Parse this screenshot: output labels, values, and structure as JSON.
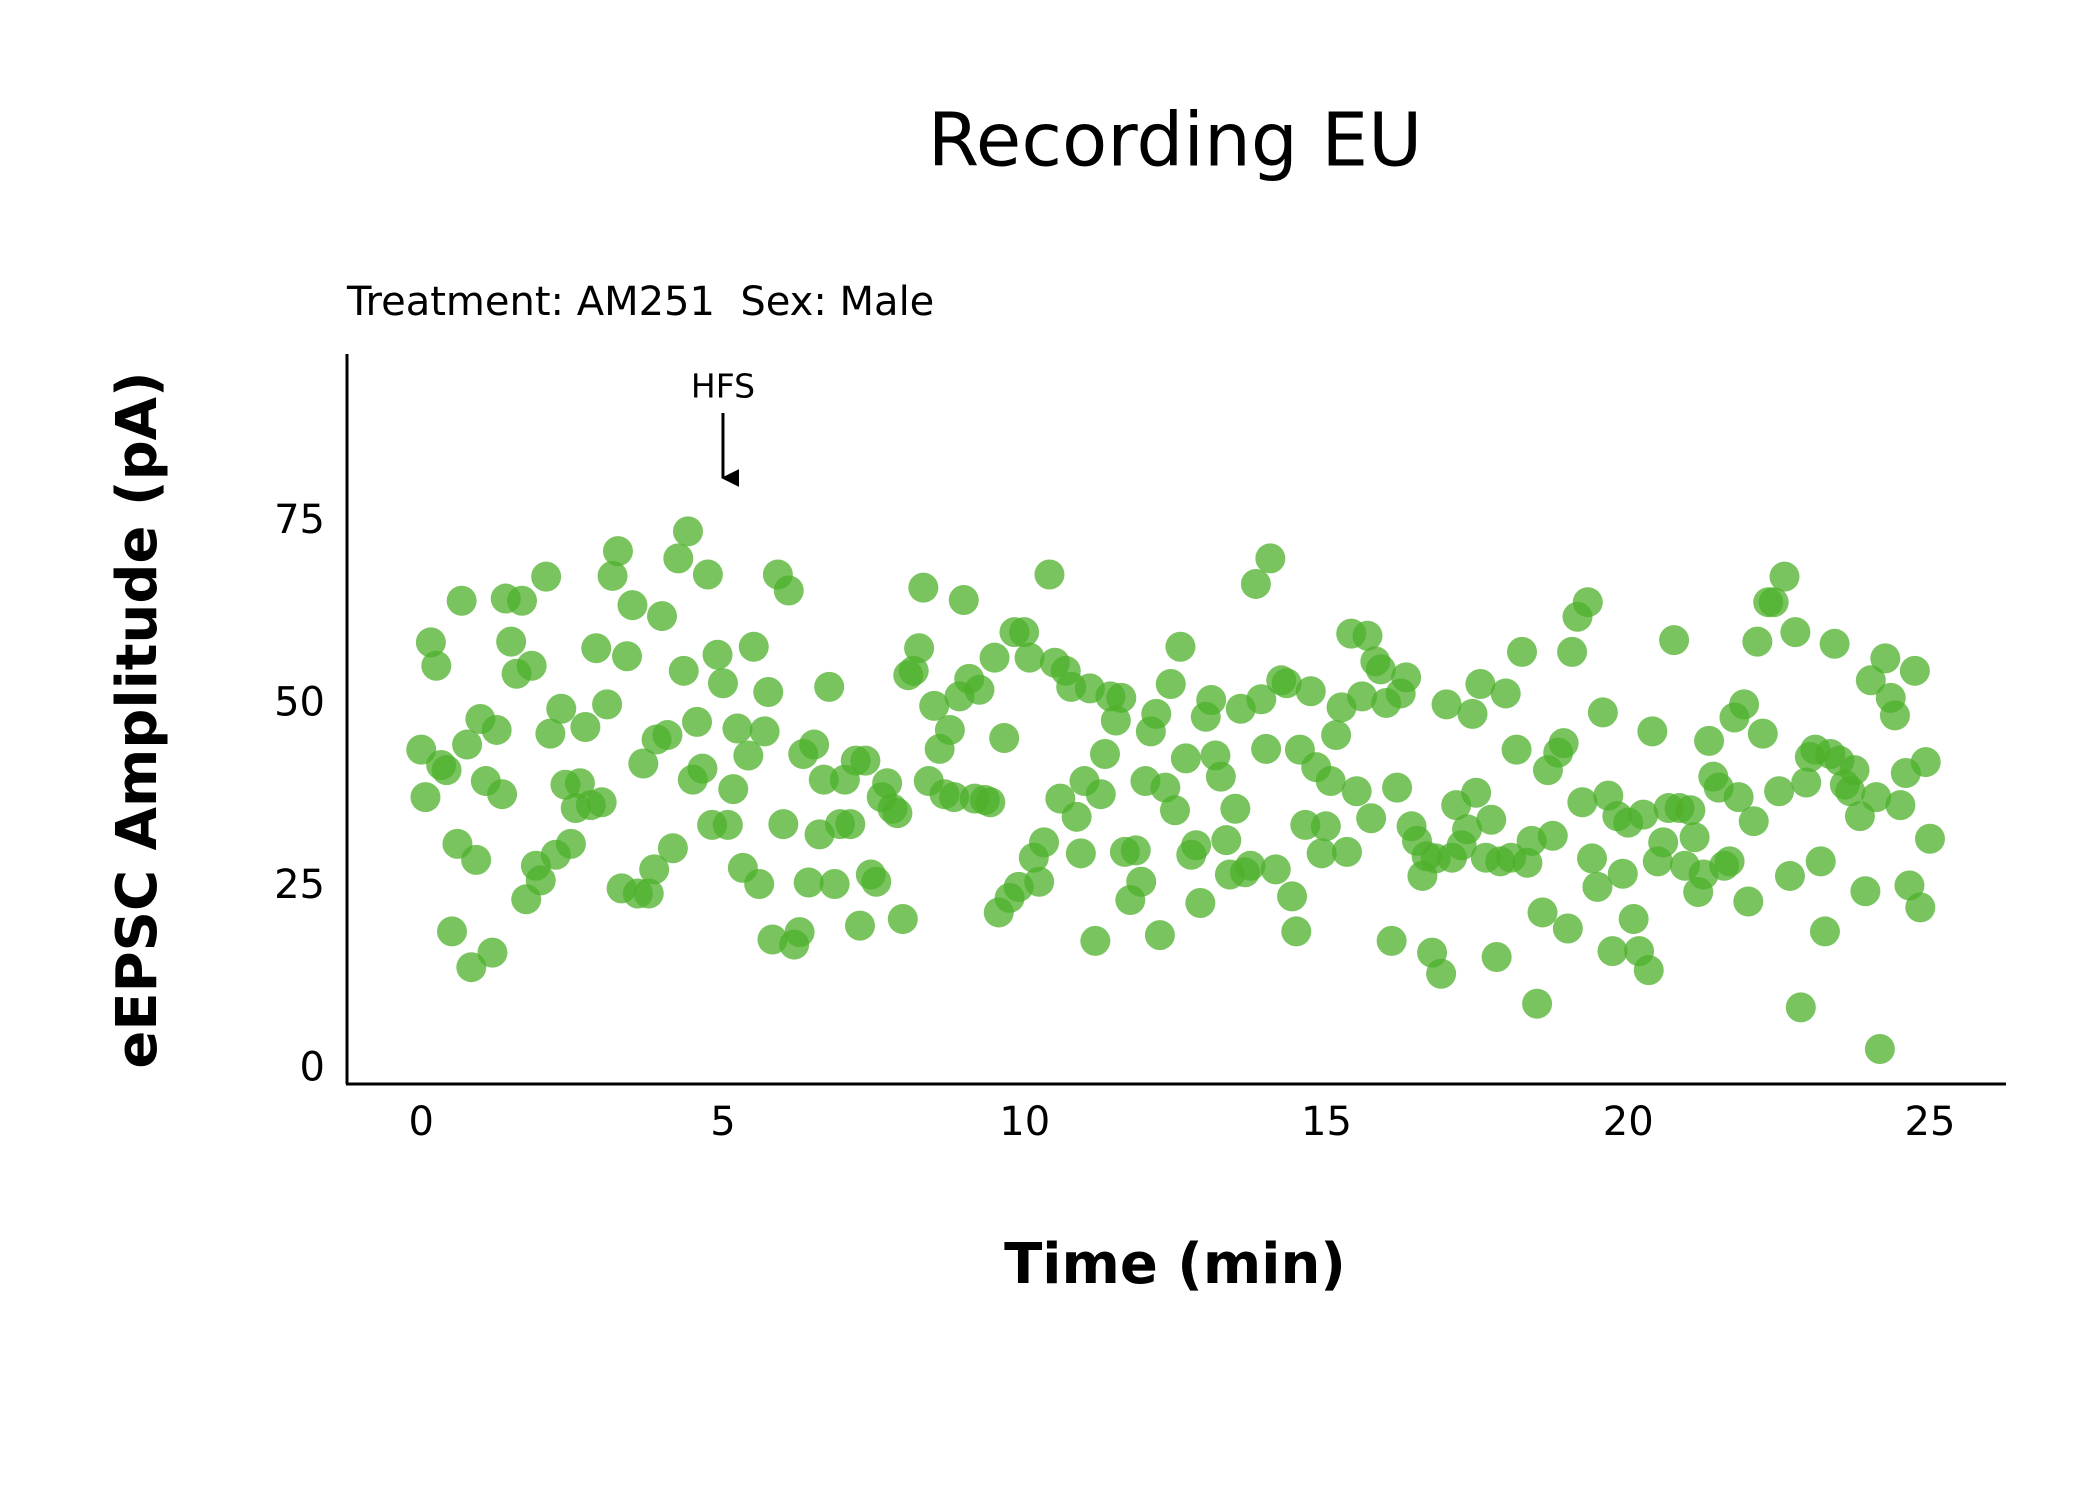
{
  "chart_data": {
    "type": "scatter",
    "title": "Recording EU",
    "subtitle": "Treatment: AM251  Sex: Male",
    "x_label": "Time (min)",
    "y_label": "eEPSC Amplitude (pA)",
    "color": "#4cb02a",
    "xlim": [
      -1.23,
      26.26
    ],
    "ylim": [
      -2,
      98
    ],
    "xticks": [
      0,
      5,
      10,
      15,
      20,
      25
    ],
    "yticks": [
      0,
      25,
      50,
      75
    ],
    "grid": false,
    "annotations": [
      {
        "text": "HFS",
        "x": 5
      }
    ],
    "x": [
      0.0,
      0.07,
      0.16,
      0.25,
      0.33,
      0.42,
      0.51,
      0.6,
      0.67,
      0.76,
      0.83,
      0.91,
      0.98,
      1.07,
      1.18,
      1.25,
      1.34,
      1.4,
      1.49,
      1.58,
      1.67,
      1.74,
      1.83,
      1.9,
      1.98,
      2.07,
      2.14,
      2.23,
      2.32,
      2.39,
      2.48,
      2.56,
      2.63,
      2.72,
      2.81,
      2.9,
      2.99,
      3.08,
      3.17,
      3.26,
      3.32,
      3.41,
      3.5,
      3.59,
      3.68,
      3.77,
      3.86,
      3.9,
      3.99,
      4.08,
      4.17,
      4.26,
      4.35,
      4.42,
      4.5,
      4.57,
      4.66,
      4.75,
      4.82,
      4.91,
      5.0,
      5.08,
      5.17,
      5.24,
      5.33,
      5.42,
      5.51,
      5.6,
      5.69,
      5.75,
      5.82,
      5.91,
      6.0,
      6.09,
      6.18,
      6.27,
      6.33,
      6.42,
      6.51,
      6.6,
      6.67,
      6.76,
      6.85,
      6.94,
      7.02,
      7.11,
      7.2,
      7.27,
      7.36,
      7.45,
      7.54,
      7.63,
      7.72,
      7.81,
      7.89,
      7.98,
      8.07,
      8.16,
      8.25,
      8.32,
      8.41,
      8.5,
      8.59,
      8.67,
      8.76,
      8.83,
      8.92,
      8.99,
      9.08,
      9.17,
      9.25,
      9.34,
      9.43,
      9.5,
      9.57,
      9.66,
      9.75,
      9.83,
      9.9,
      9.99,
      10.08,
      10.15,
      10.24,
      10.32,
      10.41,
      10.5,
      10.59,
      10.68,
      10.77,
      10.86,
      10.93,
      10.99,
      11.08,
      11.17,
      11.26,
      11.33,
      11.42,
      11.51,
      11.6,
      11.66,
      11.75,
      11.84,
      11.93,
      12.0,
      12.09,
      12.18,
      12.24,
      12.33,
      12.42,
      12.49,
      12.58,
      12.67,
      12.76,
      12.84,
      12.91,
      13.0,
      13.09,
      13.16,
      13.25,
      13.34,
      13.4,
      13.49,
      13.58,
      13.65,
      13.74,
      13.83,
      13.92,
      14.0,
      14.07,
      14.16,
      14.25,
      14.34,
      14.43,
      14.5,
      14.56,
      14.65,
      14.74,
      14.83,
      14.92,
      14.99,
      15.07,
      15.16,
      15.25,
      15.34,
      15.41,
      15.5,
      15.59,
      15.68,
      15.74,
      15.81,
      15.9,
      15.99,
      16.08,
      16.17,
      16.23,
      16.32,
      16.41,
      16.5,
      16.59,
      16.66,
      16.75,
      16.81,
      16.9,
      16.99,
      17.08,
      17.15,
      17.24,
      17.33,
      17.42,
      17.48,
      17.55,
      17.64,
      17.73,
      17.82,
      17.88,
      17.97,
      18.06,
      18.15,
      18.24,
      18.33,
      18.4,
      18.49,
      18.58,
      18.67,
      18.75,
      18.84,
      18.93,
      19.0,
      19.07,
      19.16,
      19.24,
      19.33,
      19.4,
      19.49,
      19.58,
      19.67,
      19.74,
      19.82,
      19.91,
      20.0,
      20.09,
      20.18,
      20.25,
      20.34,
      20.4,
      20.49,
      20.58,
      20.67,
      20.76,
      20.85,
      20.94,
      21.03,
      21.1,
      21.16,
      21.25,
      21.34,
      21.41,
      21.5,
      21.59,
      21.68,
      21.76,
      21.83,
      21.92,
      21.99,
      22.08,
      22.14,
      22.23,
      22.32,
      22.41,
      22.5,
      22.59,
      22.68,
      22.77,
      22.86,
      22.95,
      23.01,
      23.1,
      23.19,
      23.26,
      23.35,
      23.42,
      23.5,
      23.59,
      23.68,
      23.75,
      23.84,
      23.93,
      24.02,
      24.11,
      24.17,
      24.26,
      24.35,
      24.42,
      24.51,
      24.6,
      24.66,
      24.75,
      24.84,
      24.93,
      25.0
    ],
    "values": [
      43.8,
      37.3,
      58.5,
      55.3,
      41.7,
      41.0,
      18.9,
      30.9,
      64.2,
      44.5,
      14.0,
      28.7,
      48.0,
      39.5,
      16.0,
      46.5,
      37.7,
      64.5,
      58.6,
      54.2,
      64.2,
      23.3,
      55.3,
      27.9,
      25.9,
      67.5,
      46.0,
      29.4,
      49.4,
      39.0,
      30.9,
      35.8,
      39.2,
      46.9,
      36.2,
      57.7,
      36.6,
      50.0,
      67.6,
      71.0,
      24.8,
      56.6,
      63.6,
      24.1,
      41.9,
      24.1,
      27.4,
      45.2,
      62.1,
      45.8,
      30.3,
      70.0,
      54.6,
      73.7,
      39.7,
      47.6,
      41.2,
      67.8,
      33.5,
      56.8,
      52.9,
      33.5,
      38.4,
      46.7,
      27.6,
      43.0,
      57.9,
      25.4,
      46.3,
      51.7,
      17.8,
      67.8,
      33.6,
      65.6,
      17.1,
      18.8,
      43.2,
      25.6,
      44.5,
      32.2,
      39.7,
      52.4,
      25.4,
      33.6,
      39.7,
      33.6,
      42.3,
      19.7,
      42.3,
      26.7,
      25.7,
      37.3,
      39.2,
      35.7,
      35.1,
      20.6,
      54.0,
      54.6,
      57.7,
      66.0,
      39.5,
      49.8,
      43.9,
      37.7,
      46.5,
      37.3,
      51.1,
      64.3,
      53.5,
      37.1,
      52.0,
      36.9,
      36.6,
      56.4,
      21.5,
      45.4,
      23.5,
      59.9,
      25.0,
      59.9,
      56.4,
      29.0,
      25.7,
      31.1,
      67.8,
      55.7,
      37.1,
      54.6,
      52.4,
      34.6,
      29.6,
      39.5,
      52.2,
      17.6,
      37.7,
      43.2,
      51.1,
      47.8,
      50.9,
      29.8,
      23.2,
      30.0,
      25.7,
      39.5,
      46.3,
      48.7,
      18.4,
      38.6,
      52.8,
      35.5,
      57.9,
      42.6,
      29.4,
      30.7,
      22.8,
      48.3,
      50.6,
      43.0,
      40.1,
      31.4,
      26.7,
      35.7,
      49.4,
      27.0,
      27.9,
      66.5,
      50.7,
      43.9,
      70.0,
      27.4,
      53.3,
      52.9,
      23.7,
      18.9,
      43.8,
      33.5,
      51.8,
      41.4,
      29.6,
      33.3,
      39.5,
      45.8,
      49.6,
      29.8,
      59.7,
      38.1,
      51.1,
      59.4,
      34.4,
      55.9,
      54.8,
      50.2,
      17.6,
      38.6,
      51.5,
      53.7,
      33.3,
      31.3,
      26.5,
      29.2,
      16.0,
      28.9,
      13.1,
      50.0,
      29.0,
      36.2,
      30.7,
      32.9,
      48.7,
      37.9,
      52.8,
      29.0,
      34.2,
      15.4,
      28.5,
      51.5,
      29.0,
      43.8,
      57.2,
      28.3,
      31.3,
      9.0,
      21.5,
      41.0,
      32.0,
      43.4,
      44.7,
      19.3,
      57.2,
      62.0,
      36.6,
      64.0,
      28.9,
      25.0,
      48.9,
      37.5,
      16.2,
      34.7,
      26.8,
      33.8,
      20.6,
      16.2,
      34.9,
      13.6,
      46.3,
      28.5,
      31.1,
      35.8,
      58.8,
      35.8,
      27.9,
      35.5,
      31.8,
      24.3,
      26.7,
      45.0,
      40.1,
      38.6,
      27.9,
      28.5,
      48.2,
      37.3,
      50.0,
      23.0,
      34.0,
      58.6,
      46.0,
      64.0,
      64.0,
      38.1,
      67.5,
      26.5,
      59.9,
      8.5,
      39.3,
      42.8,
      43.8,
      28.5,
      18.9,
      43.2,
      58.3,
      42.3,
      39.0,
      38.1,
      41.0,
      34.7,
      24.4,
      53.3,
      37.3,
      2.8,
      56.3,
      50.9,
      48.5,
      36.2,
      40.6,
      25.2,
      54.6,
      22.2,
      42.1,
      31.6
    ]
  }
}
